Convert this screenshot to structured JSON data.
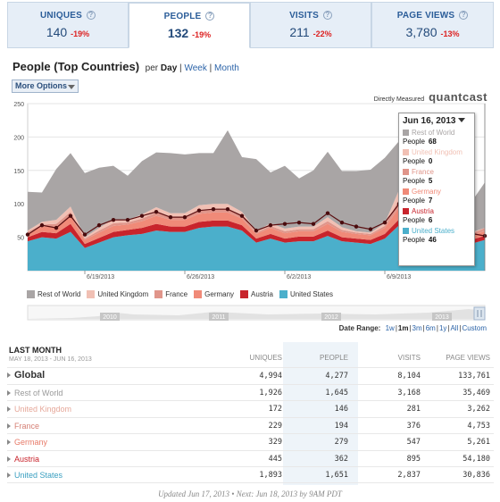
{
  "tabs": [
    {
      "label": "UNIQUES",
      "value": "140",
      "change": "-19%",
      "active": false
    },
    {
      "label": "PEOPLE",
      "value": "132",
      "change": "-19%",
      "active": true
    },
    {
      "label": "VISITS",
      "value": "211",
      "change": "-22%",
      "active": false
    },
    {
      "label": "PAGE VIEWS",
      "value": "3,780",
      "change": "-13%",
      "active": false
    }
  ],
  "help_glyph": "?",
  "header": {
    "title": "People (Top Countries)",
    "per_label": "per",
    "periods": [
      "Day",
      "Week",
      "Month"
    ],
    "period_sep": "|",
    "active_period": "Day",
    "more_options": "More Options",
    "directly_measured": "Directly Measured",
    "brand": "quantcast"
  },
  "colors": {
    "Rest of World": "#a9a5a5",
    "United Kingdom": "#f1c0b4",
    "France": "#e0958a",
    "Germany": "#f08a78",
    "Austria": "#c8242c",
    "United States": "#4bafcb"
  },
  "chart_data": {
    "type": "area",
    "stacked": true,
    "title": "People (Top Countries)",
    "ylim": [
      0,
      250
    ],
    "y_ticks": [
      50,
      100,
      150,
      200,
      250
    ],
    "x_tick_labels": [
      "6/19/2013",
      "6/26/2013",
      "6/2/2013",
      "6/9/2013"
    ],
    "x_tick_index": [
      4,
      11,
      18,
      25
    ],
    "series": [
      {
        "name": "United States",
        "values": [
          44,
          50,
          48,
          58,
          34,
          42,
          50,
          53,
          55,
          60,
          58,
          58,
          64,
          66,
          66,
          60,
          42,
          48,
          42,
          44,
          44,
          52,
          44,
          42,
          40,
          48,
          68,
          64,
          50,
          44,
          40,
          40,
          46
        ]
      },
      {
        "name": "Austria",
        "values": [
          6,
          8,
          8,
          12,
          6,
          7,
          8,
          8,
          9,
          10,
          8,
          8,
          9,
          9,
          9,
          8,
          6,
          7,
          6,
          7,
          7,
          8,
          6,
          6,
          6,
          7,
          9,
          9,
          7,
          6,
          6,
          6,
          6
        ]
      },
      {
        "name": "Germany",
        "values": [
          6,
          8,
          10,
          12,
          6,
          8,
          9,
          8,
          10,
          12,
          10,
          10,
          12,
          12,
          12,
          10,
          7,
          9,
          8,
          8,
          8,
          10,
          8,
          7,
          7,
          9,
          18,
          12,
          10,
          8,
          7,
          6,
          7
        ]
      },
      {
        "name": "France",
        "values": [
          2,
          3,
          4,
          6,
          2,
          3,
          4,
          3,
          4,
          5,
          4,
          4,
          5,
          5,
          5,
          4,
          2,
          3,
          3,
          3,
          3,
          4,
          3,
          2,
          2,
          3,
          12,
          6,
          4,
          3,
          3,
          3,
          5
        ]
      },
      {
        "name": "United Kingdom",
        "values": [
          2,
          4,
          6,
          8,
          2,
          4,
          6,
          4,
          6,
          8,
          6,
          6,
          8,
          8,
          8,
          6,
          2,
          4,
          4,
          4,
          4,
          6,
          4,
          2,
          2,
          4,
          14,
          8,
          6,
          4,
          2,
          2,
          0
        ]
      },
      {
        "name": "Rest of World",
        "values": [
          58,
          44,
          76,
          80,
          96,
          90,
          80,
          66,
          80,
          82,
          90,
          88,
          78,
          76,
          110,
          82,
          108,
          76,
          94,
          72,
          84,
          98,
          84,
          90,
          94,
          98,
          73,
          84,
          100,
          56,
          62,
          44,
          68
        ]
      }
    ],
    "total_line": [
      54,
      68,
      64,
      82,
      54,
      68,
      76,
      76,
      82,
      88,
      80,
      80,
      90,
      92,
      92,
      82,
      60,
      68,
      70,
      72,
      70,
      86,
      72,
      66,
      62,
      72,
      100,
      94,
      80,
      70,
      62,
      56,
      52
    ],
    "legend": [
      "Rest of World",
      "United Kingdom",
      "France",
      "Germany",
      "Austria",
      "United States"
    ],
    "legend_placement": "bottom"
  },
  "tooltip": {
    "date": "Jun 16, 2013",
    "rows": [
      {
        "name": "Rest of World",
        "metric": "People",
        "value": "68"
      },
      {
        "name": "United Kingdom",
        "metric": "People",
        "value": "0"
      },
      {
        "name": "France",
        "metric": "People",
        "value": "5"
      },
      {
        "name": "Germany",
        "metric": "People",
        "value": "7"
      },
      {
        "name": "Austria",
        "metric": "People",
        "value": "6"
      },
      {
        "name": "United States",
        "metric": "People",
        "value": "46"
      }
    ]
  },
  "range_years": [
    "2010",
    "2011",
    "2012",
    "2013"
  ],
  "date_range": {
    "label": "Date Range:",
    "options": [
      "1w",
      "1m",
      "3m",
      "6m",
      "1y",
      "All",
      "Custom"
    ],
    "active": "1m"
  },
  "table": {
    "title": "LAST MONTH",
    "dates": "MAY 18, 2013 - JUN 16, 2013",
    "columns": [
      "UNIQUES",
      "PEOPLE",
      "VISITS",
      "PAGE VIEWS"
    ],
    "rows": [
      {
        "name": "Global",
        "uniques": "4,994",
        "people": "4,277",
        "visits": "8,104",
        "pageviews": "133,761",
        "color": "#333333"
      },
      {
        "name": "Rest of World",
        "uniques": "1,926",
        "people": "1,645",
        "visits": "3,168",
        "pageviews": "35,469",
        "color": "#999999"
      },
      {
        "name": "United Kingdom",
        "uniques": "172",
        "people": "146",
        "visits": "281",
        "pageviews": "3,262",
        "color": "#e6a89a"
      },
      {
        "name": "France",
        "uniques": "229",
        "people": "194",
        "visits": "376",
        "pageviews": "4,753",
        "color": "#d57f74"
      },
      {
        "name": "Germany",
        "uniques": "329",
        "people": "279",
        "visits": "547",
        "pageviews": "5,261",
        "color": "#e77a68"
      },
      {
        "name": "Austria",
        "uniques": "445",
        "people": "362",
        "visits": "895",
        "pageviews": "54,180",
        "color": "#c8242c"
      },
      {
        "name": "United States",
        "uniques": "1,893",
        "people": "1,651",
        "visits": "2,837",
        "pageviews": "30,836",
        "color": "#3a9fc0"
      }
    ]
  },
  "footer": "Updated Jun 17, 2013 • Next: Jun 18, 2013 by 9AM PDT"
}
